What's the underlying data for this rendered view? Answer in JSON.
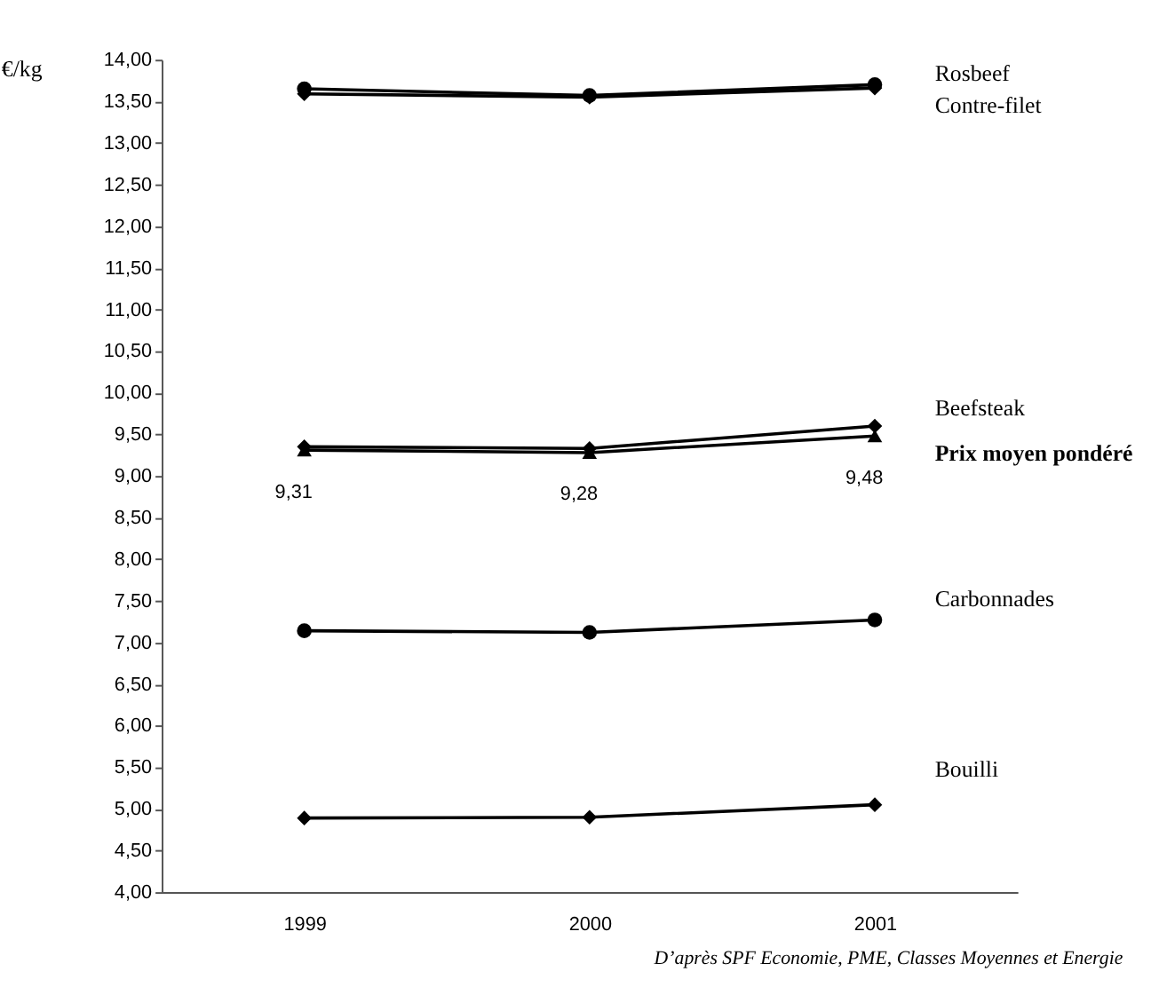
{
  "chart_data": {
    "type": "line",
    "ylabel": "€/kg",
    "categories": [
      "1999",
      "2000",
      "2001"
    ],
    "series": [
      {
        "name": "Rosbeef",
        "color": "#000000",
        "marker": "circle",
        "values": [
          13.65,
          13.57,
          13.7
        ]
      },
      {
        "name": "Contre-filet",
        "color": "#000000",
        "marker": "diamond",
        "values": [
          13.59,
          13.55,
          13.66
        ]
      },
      {
        "name": "Beefsteak",
        "color": "#000000",
        "marker": "diamond",
        "values": [
          9.35,
          9.33,
          9.6
        ]
      },
      {
        "name": "Prix moyen pondéré",
        "color": "#000000",
        "marker": "triangle",
        "values": [
          9.31,
          9.28,
          9.48
        ],
        "value_labels": [
          "9,31",
          "9,28",
          "9,48"
        ]
      },
      {
        "name": "Carbonnades",
        "color": "#000000",
        "marker": "circle",
        "values": [
          7.14,
          7.12,
          7.27
        ]
      },
      {
        "name": "Bouilli",
        "color": "#000000",
        "marker": "diamond",
        "values": [
          4.89,
          4.9,
          5.05
        ]
      }
    ],
    "ylim": [
      4,
      14
    ],
    "yticks": [
      {
        "value": 4,
        "label": "4,00"
      },
      {
        "value": 4.5,
        "label": "4,50"
      },
      {
        "value": 5,
        "label": "5,00"
      },
      {
        "value": 5.5,
        "label": "5,50"
      },
      {
        "value": 6,
        "label": "6,00"
      },
      {
        "value": 6.5,
        "label": "6,50"
      },
      {
        "value": 7,
        "label": "7,00"
      },
      {
        "value": 7.5,
        "label": "7,50"
      },
      {
        "value": 8,
        "label": "8,00"
      },
      {
        "value": 8.5,
        "label": "8,50"
      },
      {
        "value": 9,
        "label": "9,00"
      },
      {
        "value": 9.5,
        "label": "9,50"
      },
      {
        "value": 10,
        "label": "10,00"
      },
      {
        "value": 10.5,
        "label": "10,50"
      },
      {
        "value": 11,
        "label": "11,00"
      },
      {
        "value": 11.5,
        "label": "11,50"
      },
      {
        "value": 12,
        "label": "12,00"
      },
      {
        "value": 12.5,
        "label": "12,50"
      },
      {
        "value": 13,
        "label": "13,00"
      },
      {
        "value": 13.5,
        "label": "13,50"
      },
      {
        "value": 14,
        "label": "14,00"
      }
    ],
    "grid": false,
    "legend": false,
    "line_style": "solid",
    "annotations": [
      "D’après SPF Economie, PME, Classes Moyennes et Energie"
    ]
  }
}
